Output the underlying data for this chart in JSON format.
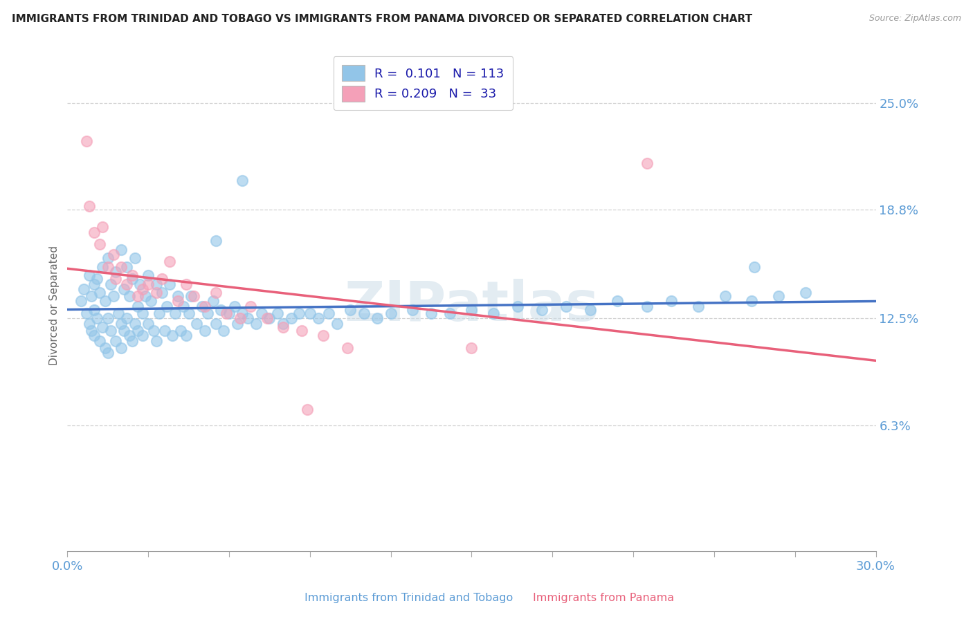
{
  "title": "IMMIGRANTS FROM TRINIDAD AND TOBAGO VS IMMIGRANTS FROM PANAMA DIVORCED OR SEPARATED CORRELATION CHART",
  "source": "Source: ZipAtlas.com",
  "ylabel": "Divorced or Separated",
  "xlim": [
    0.0,
    0.3
  ],
  "ylim": [
    -0.01,
    0.275
  ],
  "ytick_vals": [
    0.063,
    0.125,
    0.188,
    0.25
  ],
  "ytick_labels": [
    "6.3%",
    "12.5%",
    "18.8%",
    "25.0%"
  ],
  "xtick_vals": [
    0.0,
    0.3
  ],
  "xtick_labels": [
    "0.0%",
    "30.0%"
  ],
  "legend_line1": "R =  0.101   N = 113",
  "legend_line2": "R = 0.209   N =  33",
  "color_blue_dot": "#92C5E8",
  "color_pink_dot": "#F4A0B8",
  "color_blue_line": "#4472C4",
  "color_pink_line": "#E8607A",
  "color_label_blue": "#5B9BD5",
  "color_title": "#222222",
  "color_source": "#999999",
  "watermark": "ZIPatlas",
  "watermark_color": "#CCDDE8",
  "xlabel_tt": "Immigrants from Trinidad and Tobago",
  "xlabel_pan": "Immigrants from Panama",
  "blue_x": [
    0.005,
    0.006,
    0.007,
    0.008,
    0.008,
    0.009,
    0.009,
    0.01,
    0.01,
    0.01,
    0.011,
    0.011,
    0.012,
    0.012,
    0.013,
    0.013,
    0.014,
    0.014,
    0.015,
    0.015,
    0.015,
    0.016,
    0.016,
    0.017,
    0.018,
    0.018,
    0.019,
    0.02,
    0.02,
    0.02,
    0.021,
    0.021,
    0.022,
    0.022,
    0.023,
    0.023,
    0.024,
    0.024,
    0.025,
    0.025,
    0.026,
    0.026,
    0.027,
    0.028,
    0.028,
    0.029,
    0.03,
    0.03,
    0.031,
    0.032,
    0.033,
    0.033,
    0.034,
    0.035,
    0.036,
    0.037,
    0.038,
    0.039,
    0.04,
    0.041,
    0.042,
    0.043,
    0.044,
    0.045,
    0.046,
    0.048,
    0.05,
    0.051,
    0.052,
    0.054,
    0.055,
    0.057,
    0.058,
    0.06,
    0.062,
    0.063,
    0.065,
    0.067,
    0.07,
    0.072,
    0.075,
    0.078,
    0.08,
    0.083,
    0.086,
    0.09,
    0.093,
    0.097,
    0.1,
    0.105,
    0.11,
    0.115,
    0.12,
    0.128,
    0.135,
    0.142,
    0.15,
    0.158,
    0.167,
    0.176,
    0.185,
    0.194,
    0.204,
    0.215,
    0.224,
    0.234,
    0.244,
    0.254,
    0.264,
    0.274,
    0.055,
    0.065,
    0.255
  ],
  "blue_y": [
    0.135,
    0.142,
    0.128,
    0.15,
    0.122,
    0.138,
    0.118,
    0.145,
    0.13,
    0.115,
    0.148,
    0.125,
    0.14,
    0.112,
    0.155,
    0.12,
    0.135,
    0.108,
    0.16,
    0.125,
    0.105,
    0.145,
    0.118,
    0.138,
    0.152,
    0.112,
    0.128,
    0.165,
    0.122,
    0.108,
    0.142,
    0.118,
    0.155,
    0.125,
    0.138,
    0.115,
    0.148,
    0.112,
    0.16,
    0.122,
    0.132,
    0.118,
    0.145,
    0.128,
    0.115,
    0.138,
    0.15,
    0.122,
    0.135,
    0.118,
    0.145,
    0.112,
    0.128,
    0.14,
    0.118,
    0.132,
    0.145,
    0.115,
    0.128,
    0.138,
    0.118,
    0.132,
    0.115,
    0.128,
    0.138,
    0.122,
    0.132,
    0.118,
    0.128,
    0.135,
    0.122,
    0.13,
    0.118,
    0.128,
    0.132,
    0.122,
    0.128,
    0.125,
    0.122,
    0.128,
    0.125,
    0.128,
    0.122,
    0.125,
    0.128,
    0.128,
    0.125,
    0.128,
    0.122,
    0.13,
    0.128,
    0.125,
    0.128,
    0.13,
    0.128,
    0.128,
    0.13,
    0.128,
    0.132,
    0.13,
    0.132,
    0.13,
    0.135,
    0.132,
    0.135,
    0.132,
    0.138,
    0.135,
    0.138,
    0.14,
    0.17,
    0.205,
    0.155
  ],
  "pink_x": [
    0.007,
    0.008,
    0.01,
    0.012,
    0.013,
    0.015,
    0.017,
    0.018,
    0.02,
    0.022,
    0.024,
    0.026,
    0.028,
    0.03,
    0.033,
    0.035,
    0.038,
    0.041,
    0.044,
    0.047,
    0.051,
    0.055,
    0.059,
    0.064,
    0.068,
    0.074,
    0.08,
    0.087,
    0.095,
    0.104,
    0.089,
    0.215,
    0.15
  ],
  "pink_y": [
    0.228,
    0.19,
    0.175,
    0.168,
    0.178,
    0.155,
    0.162,
    0.148,
    0.155,
    0.145,
    0.15,
    0.138,
    0.142,
    0.145,
    0.14,
    0.148,
    0.158,
    0.135,
    0.145,
    0.138,
    0.132,
    0.14,
    0.128,
    0.125,
    0.132,
    0.125,
    0.12,
    0.118,
    0.115,
    0.108,
    0.072,
    0.215,
    0.108
  ]
}
